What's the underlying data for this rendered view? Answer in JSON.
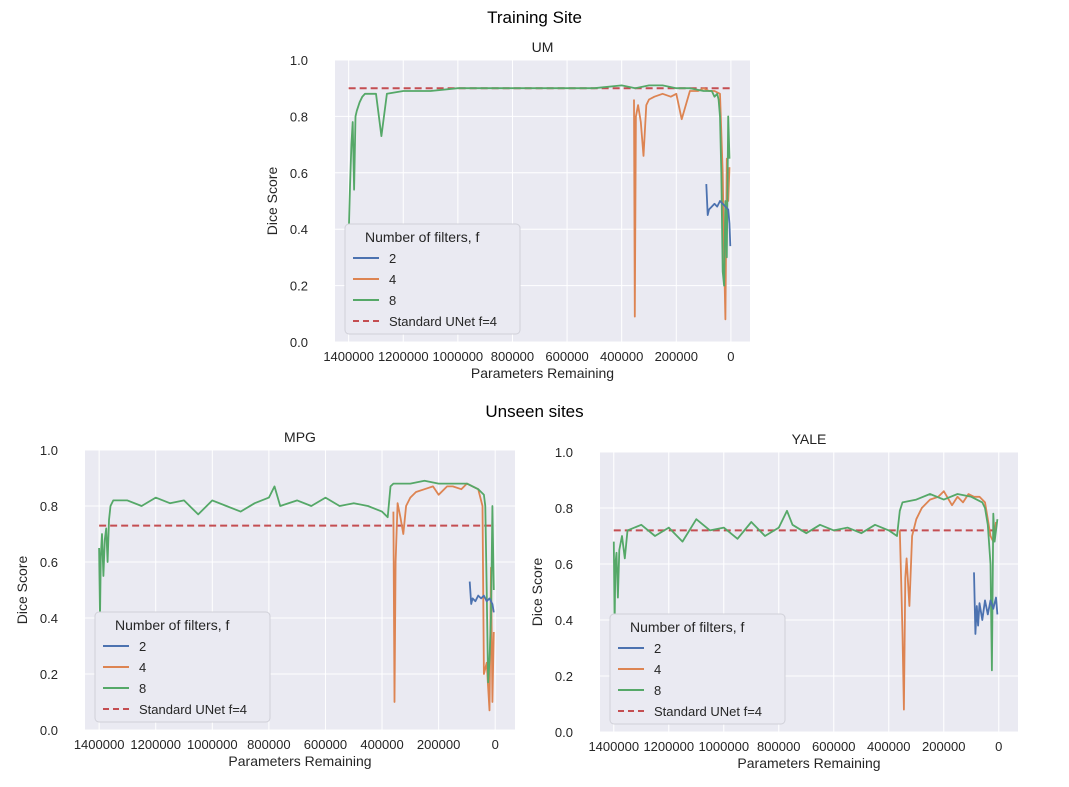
{
  "headings": {
    "training": "Training Site",
    "unseen": "Unseen sites"
  },
  "colors": {
    "f2": "#4c72b0",
    "f4": "#dd8452",
    "f8": "#55a868",
    "baseline": "#c44e52",
    "background": "#eaeaf2",
    "grid": "#ffffff"
  },
  "chart_data": [
    {
      "type": "line",
      "title": "UM",
      "xlabel": "Parameters Remaining",
      "ylabel": "Dice Score",
      "xlim": [
        1450000,
        -70000
      ],
      "ylim": [
        0.0,
        1.0
      ],
      "xticks": [
        1400000,
        1200000,
        1000000,
        800000,
        600000,
        400000,
        200000,
        0
      ],
      "xtick_labels": [
        "1400000",
        "1200000",
        "1000000",
        "800000",
        "600000",
        "400000",
        "200000",
        "0"
      ],
      "yticks": [
        0.0,
        0.2,
        0.4,
        0.6,
        0.8,
        1.0
      ],
      "ytick_labels": [
        "0.0",
        "0.2",
        "0.4",
        "0.6",
        "0.8",
        "1.0"
      ],
      "legend": {
        "title": "Number of filters, f",
        "position": "lower-left"
      },
      "baseline": {
        "name": "Standard UNet f=4",
        "value": 0.9,
        "x": [
          1400000,
          0
        ]
      },
      "series": [
        {
          "name": "2",
          "color": "#4c72b0",
          "x": [
            90000,
            85000,
            80000,
            70000,
            60000,
            50000,
            40000,
            30000,
            20000,
            10000,
            5000,
            2000
          ],
          "values": [
            0.56,
            0.45,
            0.47,
            0.48,
            0.49,
            0.48,
            0.5,
            0.49,
            0.48,
            0.47,
            0.42,
            0.34
          ]
        },
        {
          "name": "4",
          "color": "#dd8452",
          "x": [
            355000,
            352000,
            348000,
            340000,
            330000,
            320000,
            310000,
            300000,
            280000,
            250000,
            220000,
            200000,
            180000,
            150000,
            120000,
            100000,
            80000,
            60000,
            40000,
            30000,
            25000,
            20000,
            15000,
            10000,
            5000
          ],
          "values": [
            0.86,
            0.09,
            0.8,
            0.84,
            0.78,
            0.66,
            0.84,
            0.86,
            0.87,
            0.88,
            0.87,
            0.88,
            0.79,
            0.89,
            0.89,
            0.9,
            0.89,
            0.89,
            0.88,
            0.6,
            0.3,
            0.08,
            0.65,
            0.5,
            0.62
          ]
        },
        {
          "name": "8",
          "color": "#55a868",
          "x": [
            1400000,
            1395000,
            1390000,
            1385000,
            1380000,
            1375000,
            1370000,
            1360000,
            1350000,
            1340000,
            1300000,
            1280000,
            1260000,
            1200000,
            1100000,
            1000000,
            900000,
            800000,
            700000,
            600000,
            500000,
            400000,
            350000,
            300000,
            250000,
            200000,
            150000,
            100000,
            70000,
            60000,
            50000,
            45000,
            40000,
            35000,
            30000,
            25000,
            20000,
            15000,
            10000,
            5000
          ],
          "values": [
            0.38,
            0.55,
            0.7,
            0.78,
            0.54,
            0.8,
            0.82,
            0.85,
            0.87,
            0.88,
            0.88,
            0.73,
            0.88,
            0.89,
            0.89,
            0.9,
            0.9,
            0.9,
            0.9,
            0.9,
            0.9,
            0.91,
            0.9,
            0.91,
            0.91,
            0.9,
            0.9,
            0.89,
            0.89,
            0.87,
            0.88,
            0.86,
            0.8,
            0.6,
            0.25,
            0.2,
            0.5,
            0.3,
            0.8,
            0.65
          ]
        }
      ]
    },
    {
      "type": "line",
      "title": "MPG",
      "xlabel": "Parameters Remaining",
      "ylabel": "Dice Score",
      "xlim": [
        1450000,
        -70000
      ],
      "ylim": [
        0.0,
        1.0
      ],
      "xticks": [
        1400000,
        1200000,
        1000000,
        800000,
        600000,
        400000,
        200000,
        0
      ],
      "xtick_labels": [
        "1400000",
        "1200000",
        "1000000",
        "800000",
        "600000",
        "400000",
        "200000",
        "0"
      ],
      "yticks": [
        0.0,
        0.2,
        0.4,
        0.6,
        0.8,
        1.0
      ],
      "ytick_labels": [
        "0.0",
        "0.2",
        "0.4",
        "0.6",
        "0.8",
        "1.0"
      ],
      "legend": {
        "title": "Number of filters, f",
        "position": "lower-left"
      },
      "baseline": {
        "name": "Standard UNet f=4",
        "value": 0.73,
        "x": [
          1400000,
          0
        ]
      },
      "series": [
        {
          "name": "2",
          "color": "#4c72b0",
          "x": [
            90000,
            85000,
            80000,
            70000,
            60000,
            50000,
            40000,
            30000,
            20000,
            10000,
            5000
          ],
          "values": [
            0.53,
            0.45,
            0.47,
            0.46,
            0.48,
            0.47,
            0.48,
            0.46,
            0.47,
            0.45,
            0.42
          ]
        },
        {
          "name": "4",
          "color": "#dd8452",
          "x": [
            360000,
            356000,
            352000,
            345000,
            335000,
            325000,
            315000,
            300000,
            280000,
            250000,
            220000,
            200000,
            170000,
            150000,
            120000,
            100000,
            80000,
            60000,
            45000,
            40000,
            30000,
            20000,
            15000,
            10000,
            5000
          ],
          "values": [
            0.78,
            0.1,
            0.6,
            0.81,
            0.76,
            0.7,
            0.8,
            0.83,
            0.85,
            0.86,
            0.87,
            0.84,
            0.87,
            0.87,
            0.86,
            0.88,
            0.87,
            0.86,
            0.8,
            0.2,
            0.24,
            0.07,
            0.58,
            0.1,
            0.35
          ]
        },
        {
          "name": "8",
          "color": "#55a868",
          "x": [
            1400000,
            1397000,
            1394000,
            1390000,
            1385000,
            1380000,
            1375000,
            1370000,
            1365000,
            1360000,
            1350000,
            1300000,
            1250000,
            1200000,
            1150000,
            1100000,
            1050000,
            1000000,
            950000,
            900000,
            850000,
            800000,
            780000,
            760000,
            700000,
            650000,
            600000,
            550000,
            500000,
            450000,
            400000,
            380000,
            370000,
            360000,
            350000,
            300000,
            250000,
            200000,
            150000,
            100000,
            60000,
            50000,
            40000,
            35000,
            30000,
            25000,
            20000,
            15000,
            10000,
            5000
          ],
          "values": [
            0.65,
            0.4,
            0.62,
            0.7,
            0.55,
            0.68,
            0.72,
            0.6,
            0.75,
            0.8,
            0.82,
            0.82,
            0.8,
            0.83,
            0.81,
            0.82,
            0.77,
            0.82,
            0.8,
            0.78,
            0.81,
            0.83,
            0.87,
            0.8,
            0.82,
            0.8,
            0.83,
            0.8,
            0.81,
            0.8,
            0.78,
            0.76,
            0.87,
            0.88,
            0.88,
            0.88,
            0.89,
            0.88,
            0.88,
            0.88,
            0.86,
            0.85,
            0.84,
            0.8,
            0.5,
            0.17,
            0.25,
            0.4,
            0.8,
            0.5
          ]
        }
      ]
    },
    {
      "type": "line",
      "title": "YALE",
      "xlabel": "Parameters Remaining",
      "ylabel": "Dice Score",
      "xlim": [
        1450000,
        -70000
      ],
      "ylim": [
        0.0,
        1.0
      ],
      "xticks": [
        1400000,
        1200000,
        1000000,
        800000,
        600000,
        400000,
        200000,
        0
      ],
      "xtick_labels": [
        "1400000",
        "1200000",
        "1000000",
        "800000",
        "600000",
        "400000",
        "200000",
        "0"
      ],
      "yticks": [
        0.0,
        0.2,
        0.4,
        0.6,
        0.8,
        1.0
      ],
      "ytick_labels": [
        "0.0",
        "0.2",
        "0.4",
        "0.6",
        "0.8",
        "1.0"
      ],
      "legend": {
        "title": "Number of filters, f",
        "position": "lower-left"
      },
      "baseline": {
        "name": "Standard UNet f=4",
        "value": 0.72,
        "x": [
          1400000,
          0
        ]
      },
      "series": [
        {
          "name": "2",
          "color": "#4c72b0",
          "x": [
            90000,
            85000,
            80000,
            75000,
            70000,
            60000,
            50000,
            40000,
            30000,
            20000,
            10000,
            5000
          ],
          "values": [
            0.57,
            0.35,
            0.45,
            0.38,
            0.46,
            0.4,
            0.47,
            0.42,
            0.47,
            0.44,
            0.48,
            0.42
          ]
        },
        {
          "name": "4",
          "color": "#dd8452",
          "x": [
            360000,
            355000,
            350000,
            345000,
            340000,
            335000,
            325000,
            315000,
            300000,
            280000,
            250000,
            220000,
            200000,
            170000,
            150000,
            130000,
            110000,
            90000,
            70000,
            50000,
            40000,
            30000,
            20000,
            10000
          ],
          "values": [
            0.72,
            0.55,
            0.35,
            0.08,
            0.55,
            0.62,
            0.45,
            0.7,
            0.76,
            0.8,
            0.83,
            0.84,
            0.86,
            0.81,
            0.84,
            0.82,
            0.85,
            0.84,
            0.84,
            0.82,
            0.76,
            0.7,
            0.68,
            0.75
          ]
        },
        {
          "name": "8",
          "color": "#55a868",
          "x": [
            1400000,
            1397000,
            1394000,
            1390000,
            1385000,
            1380000,
            1370000,
            1360000,
            1350000,
            1300000,
            1250000,
            1200000,
            1150000,
            1100000,
            1050000,
            1000000,
            950000,
            900000,
            850000,
            800000,
            770000,
            750000,
            700000,
            650000,
            600000,
            550000,
            500000,
            450000,
            400000,
            370000,
            360000,
            350000,
            300000,
            250000,
            200000,
            150000,
            100000,
            60000,
            50000,
            40000,
            30000,
            25000,
            20000,
            15000,
            10000,
            5000
          ],
          "values": [
            0.68,
            0.38,
            0.6,
            0.64,
            0.48,
            0.65,
            0.7,
            0.62,
            0.72,
            0.74,
            0.7,
            0.73,
            0.68,
            0.76,
            0.72,
            0.73,
            0.69,
            0.75,
            0.7,
            0.73,
            0.79,
            0.74,
            0.71,
            0.74,
            0.72,
            0.73,
            0.71,
            0.74,
            0.72,
            0.7,
            0.79,
            0.82,
            0.83,
            0.85,
            0.83,
            0.85,
            0.84,
            0.82,
            0.8,
            0.74,
            0.6,
            0.22,
            0.78,
            0.68,
            0.72,
            0.76
          ]
        }
      ]
    }
  ]
}
